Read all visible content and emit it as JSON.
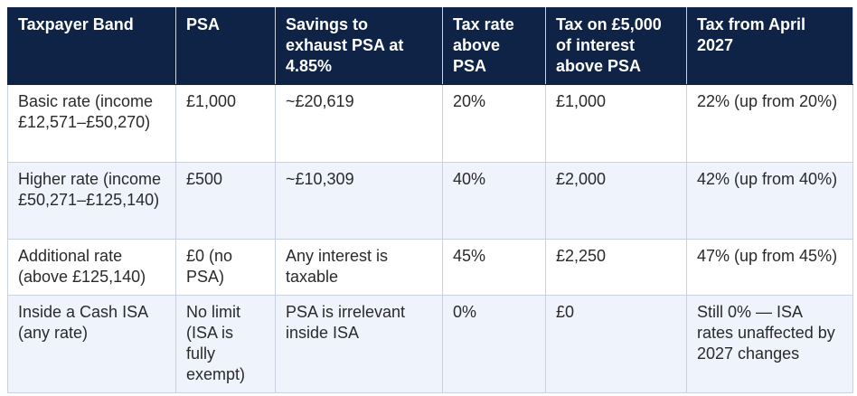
{
  "table": {
    "header": [
      "Taxpayer Band",
      "PSA",
      "Savings to exhaust PSA at 4.85%",
      "Tax rate above PSA",
      "Tax on £5,000 of interest above PSA",
      "Tax from April 2027"
    ],
    "rows": [
      [
        "Basic rate (income £12,571–£50,270)",
        "£1,000",
        "~£20,619",
        "20%",
        "£1,000",
        "22% (up from 20%)"
      ],
      [
        "Higher rate (income £50,271–£125,140)",
        "£500",
        "~£10,309",
        "40%",
        "£2,000",
        "42% (up from 40%)"
      ],
      [
        "Additional rate (above £125,140)",
        "£0 (no PSA)",
        "Any interest is taxable",
        "45%",
        "£2,250",
        "47% (up from 45%)"
      ],
      [
        "Inside a Cash ISA (any rate)",
        "No limit (ISA is fully exempt)",
        "PSA is irrelevant inside ISA",
        "0%",
        "£0",
        "Still 0% — ISA rates unaffected by 2027 changes"
      ]
    ]
  }
}
